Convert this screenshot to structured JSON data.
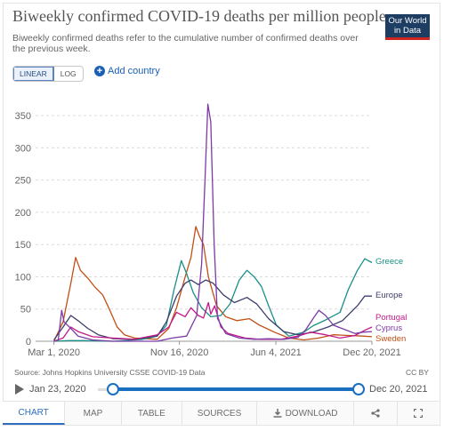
{
  "header": {
    "title": "Biweekly confirmed COVID-19 deaths per million people",
    "subtitle": "Biweekly confirmed deaths refer to the cumulative number of confirmed deaths over the previous week.",
    "logo_line1": "Our World",
    "logo_line2": "in Data"
  },
  "controls": {
    "linear_label": "LINEAR",
    "log_label": "LOG",
    "add_country_label": "Add country"
  },
  "footer": {
    "source": "Source: Johns Hopkins University CSSE COVID-19 Data",
    "license": "CC BY",
    "start_date": "Jan 23, 2020",
    "end_date": "Dec 20, 2021"
  },
  "tabs": [
    {
      "label": "CHART",
      "icon": ""
    },
    {
      "label": "MAP",
      "icon": ""
    },
    {
      "label": "TABLE",
      "icon": ""
    },
    {
      "label": "SOURCES",
      "icon": ""
    },
    {
      "label": "DOWNLOAD",
      "icon": "download-icon"
    },
    {
      "label": "",
      "icon": "share-icon"
    },
    {
      "label": "",
      "icon": "fullscreen-icon"
    }
  ],
  "colors": {
    "Greece": "#1a8f88",
    "Europe": "#3c3e6c",
    "Portugal": "#c2198a",
    "Cyprus": "#7d3aa6",
    "Sweden": "#c05015",
    "accent": "#1a6fc0"
  },
  "chart_data": {
    "type": "line",
    "title": "Biweekly confirmed COVID-19 deaths per million people",
    "xlabel": "",
    "ylabel": "",
    "ylim": [
      0,
      375
    ],
    "yticks": [
      0,
      50,
      100,
      150,
      200,
      250,
      300,
      350
    ],
    "x_tick_labels": [
      "Mar 1, 2020",
      "Nov 16, 2020",
      "Jun 4, 2021",
      "Dec 20, 2021"
    ],
    "x_tick_dates": [
      "2020-03-01",
      "2020-11-16",
      "2021-06-04",
      "2021-12-20"
    ],
    "xlim": [
      "2020-01-23",
      "2021-12-20"
    ],
    "grid": true,
    "legend_placement": "right end labels",
    "series": [
      {
        "name": "Greece",
        "values": [
          [
            "2020-03-01",
            0
          ],
          [
            "2020-04-01",
            1
          ],
          [
            "2020-05-01",
            1
          ],
          [
            "2020-07-01",
            0
          ],
          [
            "2020-09-01",
            3
          ],
          [
            "2020-10-01",
            8
          ],
          [
            "2020-10-20",
            25
          ],
          [
            "2020-11-05",
            80
          ],
          [
            "2020-11-20",
            125
          ],
          [
            "2020-12-01",
            105
          ],
          [
            "2020-12-15",
            75
          ],
          [
            "2021-01-01",
            52
          ],
          [
            "2021-01-20",
            38
          ],
          [
            "2021-02-10",
            40
          ],
          [
            "2021-03-01",
            58
          ],
          [
            "2021-03-20",
            95
          ],
          [
            "2021-04-05",
            110
          ],
          [
            "2021-04-20",
            100
          ],
          [
            "2021-05-05",
            85
          ],
          [
            "2021-05-20",
            55
          ],
          [
            "2021-06-05",
            25
          ],
          [
            "2021-07-01",
            8
          ],
          [
            "2021-08-01",
            14
          ],
          [
            "2021-08-20",
            24
          ],
          [
            "2021-09-15",
            33
          ],
          [
            "2021-10-15",
            45
          ],
          [
            "2021-11-01",
            80
          ],
          [
            "2021-11-20",
            110
          ],
          [
            "2021-12-05",
            128
          ],
          [
            "2021-12-20",
            122
          ]
        ]
      },
      {
        "name": "Europe",
        "values": [
          [
            "2020-03-01",
            2
          ],
          [
            "2020-03-20",
            22
          ],
          [
            "2020-04-05",
            40
          ],
          [
            "2020-04-20",
            32
          ],
          [
            "2020-05-10",
            20
          ],
          [
            "2020-06-01",
            10
          ],
          [
            "2020-07-01",
            4
          ],
          [
            "2020-08-15",
            3
          ],
          [
            "2020-10-01",
            8
          ],
          [
            "2020-10-20",
            30
          ],
          [
            "2020-11-10",
            70
          ],
          [
            "2020-11-28",
            90
          ],
          [
            "2020-12-10",
            95
          ],
          [
            "2020-12-25",
            88
          ],
          [
            "2021-01-10",
            95
          ],
          [
            "2021-01-25",
            90
          ],
          [
            "2021-02-15",
            72
          ],
          [
            "2021-03-10",
            60
          ],
          [
            "2021-04-05",
            68
          ],
          [
            "2021-04-25",
            58
          ],
          [
            "2021-05-20",
            35
          ],
          [
            "2021-06-20",
            15
          ],
          [
            "2021-07-20",
            10
          ],
          [
            "2021-08-20",
            14
          ],
          [
            "2021-09-20",
            22
          ],
          [
            "2021-10-20",
            32
          ],
          [
            "2021-11-20",
            55
          ],
          [
            "2021-12-05",
            70
          ],
          [
            "2021-12-20",
            70
          ]
        ]
      },
      {
        "name": "Portugal",
        "values": [
          [
            "2020-03-01",
            0
          ],
          [
            "2020-03-20",
            5
          ],
          [
            "2020-04-05",
            22
          ],
          [
            "2020-04-20",
            15
          ],
          [
            "2020-05-20",
            7
          ],
          [
            "2020-07-01",
            5
          ],
          [
            "2020-08-15",
            3
          ],
          [
            "2020-10-01",
            10
          ],
          [
            "2020-10-25",
            22
          ],
          [
            "2020-11-10",
            45
          ],
          [
            "2020-11-28",
            38
          ],
          [
            "2020-12-10",
            52
          ],
          [
            "2020-12-25",
            40
          ],
          [
            "2021-01-05",
            36
          ],
          [
            "2021-01-15",
            60
          ],
          [
            "2021-01-20",
            42
          ],
          [
            "2021-01-28",
            55
          ],
          [
            "2021-02-10",
            22
          ],
          [
            "2021-02-25",
            12
          ],
          [
            "2021-04-01",
            5
          ],
          [
            "2021-05-01",
            3
          ],
          [
            "2021-06-15",
            3
          ],
          [
            "2021-07-20",
            8
          ],
          [
            "2021-08-15",
            14
          ],
          [
            "2021-09-15",
            10
          ],
          [
            "2021-10-15",
            5
          ],
          [
            "2021-11-15",
            9
          ],
          [
            "2021-12-05",
            17
          ],
          [
            "2021-12-20",
            22
          ]
        ]
      },
      {
        "name": "Cyprus",
        "values": [
          [
            "2020-03-01",
            0
          ],
          [
            "2020-03-10",
            2
          ],
          [
            "2020-03-17",
            48
          ],
          [
            "2020-03-22",
            30
          ],
          [
            "2020-04-05",
            20
          ],
          [
            "2020-04-20",
            8
          ],
          [
            "2020-05-20",
            2
          ],
          [
            "2020-07-01",
            0
          ],
          [
            "2020-10-01",
            0
          ],
          [
            "2020-11-01",
            5
          ],
          [
            "2020-12-01",
            8
          ],
          [
            "2020-12-22",
            40
          ],
          [
            "2021-01-01",
            120
          ],
          [
            "2021-01-08",
            250
          ],
          [
            "2021-01-14",
            368
          ],
          [
            "2021-01-20",
            340
          ],
          [
            "2021-01-27",
            150
          ],
          [
            "2021-02-03",
            35
          ],
          [
            "2021-02-20",
            12
          ],
          [
            "2021-03-20",
            5
          ],
          [
            "2021-04-20",
            3
          ],
          [
            "2021-05-20",
            4
          ],
          [
            "2021-06-20",
            3
          ],
          [
            "2021-07-20",
            6
          ],
          [
            "2021-08-05",
            18
          ],
          [
            "2021-08-20",
            35
          ],
          [
            "2021-09-01",
            48
          ],
          [
            "2021-09-15",
            40
          ],
          [
            "2021-10-01",
            25
          ],
          [
            "2021-10-25",
            18
          ],
          [
            "2021-11-15",
            12
          ],
          [
            "2021-12-01",
            14
          ],
          [
            "2021-12-20",
            15
          ]
        ]
      },
      {
        "name": "Sweden",
        "values": [
          [
            "2020-03-01",
            0
          ],
          [
            "2020-03-20",
            30
          ],
          [
            "2020-04-05",
            90
          ],
          [
            "2020-04-15",
            130
          ],
          [
            "2020-04-25",
            110
          ],
          [
            "2020-05-10",
            98
          ],
          [
            "2020-05-25",
            84
          ],
          [
            "2020-06-10",
            72
          ],
          [
            "2020-06-25",
            48
          ],
          [
            "2020-07-10",
            22
          ],
          [
            "2020-07-25",
            10
          ],
          [
            "2020-08-15",
            5
          ],
          [
            "2020-10-01",
            3
          ],
          [
            "2020-10-25",
            20
          ],
          [
            "2020-11-10",
            52
          ],
          [
            "2020-11-28",
            100
          ],
          [
            "2020-12-10",
            130
          ],
          [
            "2020-12-20",
            178
          ],
          [
            "2020-12-28",
            162
          ],
          [
            "2021-01-05",
            150
          ],
          [
            "2021-01-15",
            100
          ],
          [
            "2021-02-01",
            55
          ],
          [
            "2021-02-20",
            38
          ],
          [
            "2021-03-15",
            32
          ],
          [
            "2021-04-10",
            35
          ],
          [
            "2021-05-01",
            25
          ],
          [
            "2021-06-01",
            14
          ],
          [
            "2021-07-01",
            5
          ],
          [
            "2021-08-01",
            2
          ],
          [
            "2021-09-01",
            5
          ],
          [
            "2021-10-01",
            10
          ],
          [
            "2021-11-01",
            9
          ],
          [
            "2021-12-01",
            8
          ],
          [
            "2021-12-20",
            7
          ]
        ]
      }
    ]
  }
}
